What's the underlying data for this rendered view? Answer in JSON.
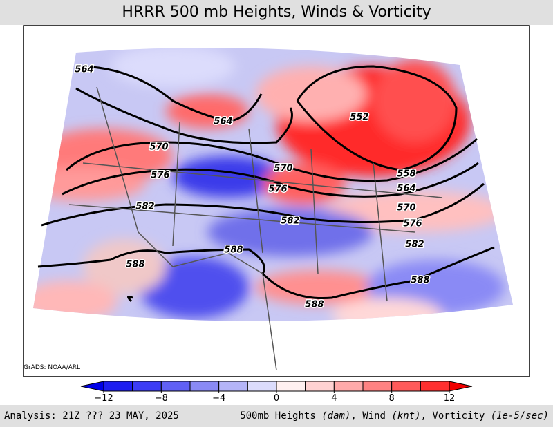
{
  "header": {
    "title": "HRRR 500 mb Heights, Winds & Vorticity"
  },
  "map": {
    "credit": "GrADS: NOAA/ARL",
    "contours": [
      {
        "label": 564
      },
      {
        "label": 564
      },
      {
        "label": 552
      },
      {
        "label": 570
      },
      {
        "label": 570
      },
      {
        "label": 576
      },
      {
        "label": 576
      },
      {
        "label": 582
      },
      {
        "label": 582
      },
      {
        "label": 588
      },
      {
        "label": 588
      },
      {
        "label": 588
      },
      {
        "label": 588
      },
      {
        "label": 582
      },
      {
        "label": 576
      },
      {
        "label": 570
      },
      {
        "label": 564
      },
      {
        "label": 558
      }
    ]
  },
  "colorbar": {
    "colors": [
      "#0000e6",
      "#1e1ef0",
      "#3c3cf5",
      "#6060f5",
      "#8a8af5",
      "#b4b4f8",
      "#dcdcfc",
      "#fff0f0",
      "#ffd2d2",
      "#ffaaaa",
      "#ff8282",
      "#ff5a5a",
      "#ff3030",
      "#f00000"
    ],
    "ticks": [
      {
        "value": -12,
        "label": "−12"
      },
      {
        "value": -8,
        "label": "−8"
      },
      {
        "value": -4,
        "label": "−4"
      },
      0,
      4,
      8,
      12
    ]
  },
  "footer": {
    "left": "Analysis: 21Z ??? 23 MAY, 2025",
    "right": [
      "500mb Heights ",
      "(dam)",
      ", Wind ",
      "(knt)",
      ", Vorticity ",
      "(1e-5/sec)"
    ]
  }
}
